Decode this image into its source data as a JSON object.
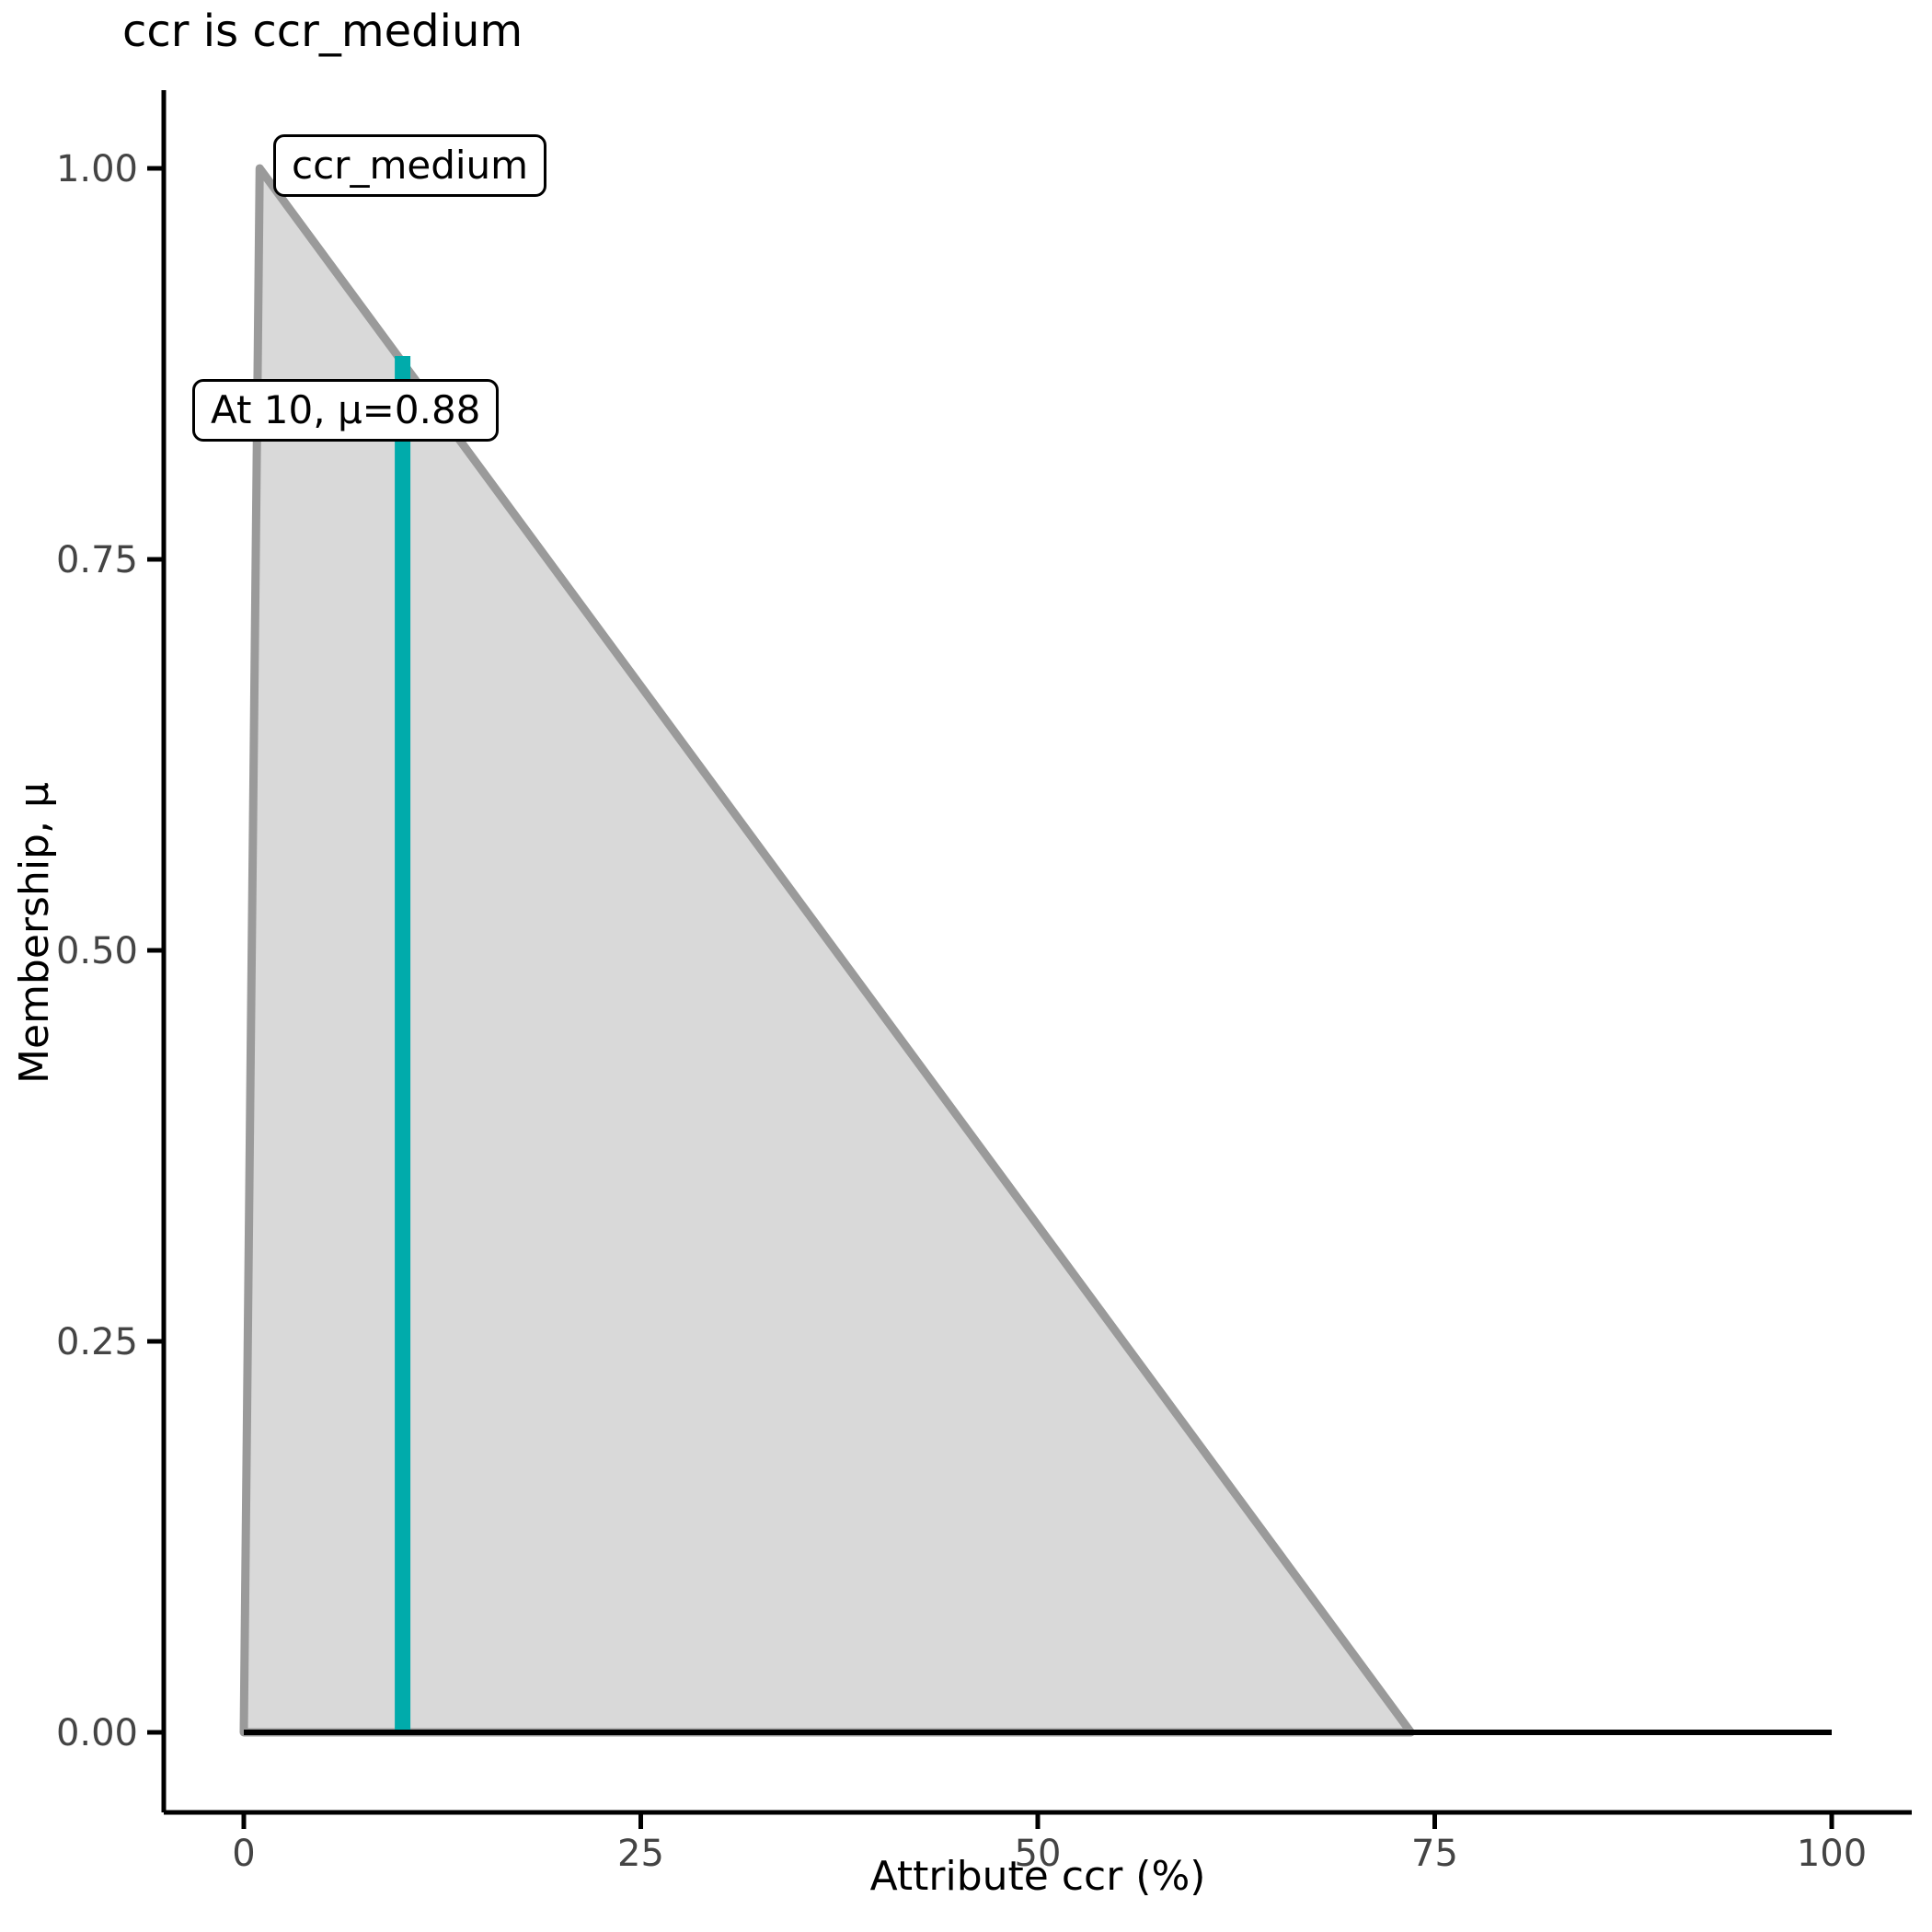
{
  "colors": {
    "membership_fill": "#D9D9D9",
    "membership_edge": "#9A9A9A",
    "marker_teal": "#00ABAB",
    "baseline_black": "#000000",
    "axis_line": "#000000",
    "tick_label_gray": "#444444"
  },
  "chart_data": {
    "type": "area",
    "title": "ccr is ccr_medium",
    "xlabel": "Attribute ccr (%)",
    "ylabel": "Membership, μ",
    "xlim": [
      0,
      100
    ],
    "ylim": [
      0,
      1
    ],
    "grid": "off",
    "legend": "none",
    "x_ticks": [
      {
        "v": 0,
        "label": "0"
      },
      {
        "v": 25,
        "label": "25"
      },
      {
        "v": 50,
        "label": "50"
      },
      {
        "v": 75,
        "label": "75"
      },
      {
        "v": 100,
        "label": "100"
      }
    ],
    "y_ticks": [
      {
        "v": 1.0,
        "label": "1.00"
      },
      {
        "v": 0.75,
        "label": "0.75"
      },
      {
        "v": 0.5,
        "label": "0.50"
      },
      {
        "v": 0.25,
        "label": "0.25"
      },
      {
        "v": 0.0,
        "label": "0.00"
      }
    ],
    "membership_function": {
      "name": "ccr_medium",
      "shape": "triangular",
      "polygon": [
        [
          0,
          0
        ],
        [
          1,
          1
        ],
        [
          73.5,
          0
        ]
      ]
    },
    "baseline": {
      "y": 0,
      "x_from": 0,
      "x_to": 100
    },
    "marker": {
      "x": 10,
      "mu": 0.88
    },
    "annotations": [
      {
        "text": "ccr_medium"
      },
      {
        "text": "At 10, μ=0.88"
      }
    ]
  }
}
